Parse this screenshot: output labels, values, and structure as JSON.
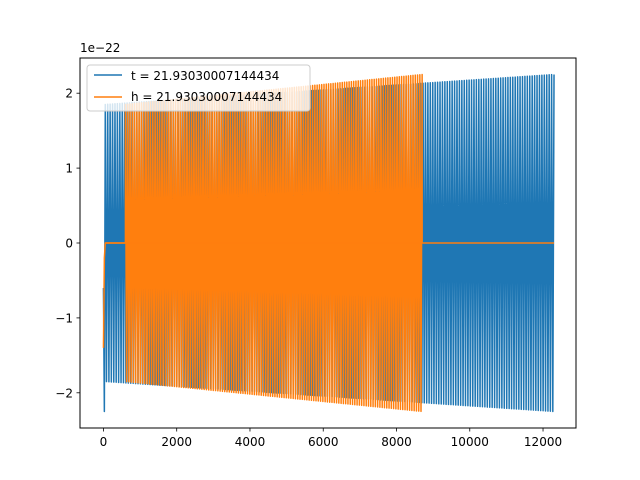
{
  "chart_data": {
    "type": "line",
    "title": "",
    "xlabel": "",
    "ylabel": "",
    "y_scale_label": "1e−22",
    "xlim": [
      -640,
      12900
    ],
    "ylim": [
      -2.47,
      2.47
    ],
    "xticks": [
      0,
      2000,
      4000,
      6000,
      8000,
      10000,
      12000
    ],
    "xtick_labels": [
      "0",
      "2000",
      "4000",
      "6000",
      "8000",
      "10000",
      "12000"
    ],
    "yticks": [
      -2,
      -1,
      0,
      1,
      2
    ],
    "ytick_labels": [
      "−2",
      "−1",
      "0",
      "1",
      "2"
    ],
    "grid": false,
    "legend_position": "top-left",
    "series": [
      {
        "name": "t = 21.93030007144434",
        "color": "#1f77b4",
        "kind": "damped-oscillation-growing",
        "x_range": [
          0,
          12300
        ],
        "cycles": 185,
        "amplitude_start": 1.85,
        "amplitude_end": 2.25,
        "initial_spike": -2.25,
        "onset_x": 50
      },
      {
        "name": "h = 21.93030007144434",
        "color": "#ff7f0e",
        "kind": "oscillation-then-flat",
        "x_range": [
          0,
          12300
        ],
        "active_range": [
          50,
          8700
        ],
        "cycles": 130,
        "amplitude_start": 1.85,
        "amplitude_end": 2.25,
        "initial_spike": -1.4,
        "flat_value": 0
      }
    ]
  }
}
